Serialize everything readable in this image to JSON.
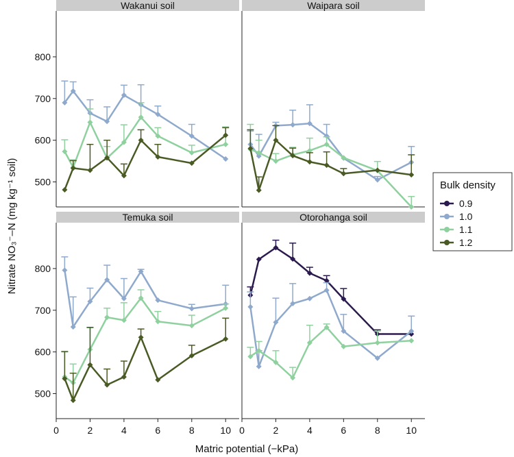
{
  "chart_data": {
    "type": "line",
    "xlabel": "Matric potential (−kPa)",
    "ylabel": "Nitrate NO₃⁻–N (mg kg⁻¹ soil)",
    "xlim": [
      0,
      10.8
    ],
    "ylim": [
      440,
      910
    ],
    "x_ticks": [
      0,
      2,
      4,
      6,
      8,
      10
    ],
    "y_ticks": [
      500,
      600,
      700,
      800
    ],
    "grid": false,
    "legend": {
      "title": "Bulk density",
      "position": "right",
      "entries": [
        "0.9",
        "1.0",
        "1.1",
        "1.2"
      ]
    },
    "colors": {
      "0.9": "#2a1a4d",
      "1.0": "#8ea9cc",
      "1.1": "#8fd19e",
      "1.2": "#4a5a24",
      "strip": "#cccccc"
    },
    "x": [
      0.5,
      1,
      2,
      3,
      4,
      5,
      6,
      8,
      10
    ],
    "panels": [
      {
        "title": "Wakanui soil",
        "series": [
          {
            "name": "1.0",
            "values": [
              690,
              718,
              665,
              645,
              708,
              685,
              662,
              610,
              555
            ],
            "err": [
              52,
              22,
              32,
              35,
              24,
              48,
              20,
              28,
              0
            ]
          },
          {
            "name": "1.1",
            "values": [
              573,
              535,
              643,
              557,
              595,
              655,
              610,
              570,
              590
            ],
            "err": [
              28,
              18,
              32,
              28,
              42,
              35,
              20,
              18,
              42
            ]
          },
          {
            "name": "1.2",
            "values": [
              481,
              533,
              528,
              558,
              515,
              600,
              560,
              545,
              612
            ],
            "err": [
              0,
              18,
              62,
              42,
              28,
              25,
              30,
              0,
              18
            ]
          }
        ]
      },
      {
        "title": "Waipara soil",
        "series": [
          {
            "name": "1.0",
            "values": [
              590,
              562,
              635,
              637,
              640,
              610,
              557,
              505,
              547
            ],
            "err": [
              32,
              52,
              8,
              35,
              45,
              28,
              0,
              8,
              38
            ]
          },
          {
            "name": "1.1",
            "values": [
              578,
              570,
              550,
              565,
              575,
              590,
              558,
              527,
              440
            ],
            "err": [
              60,
              30,
              18,
              18,
              30,
              18,
              0,
              22,
              25
            ]
          },
          {
            "name": "1.2",
            "values": [
              580,
              480,
              600,
              563,
              548,
              540,
              520,
              528,
              517
            ],
            "err": [
              45,
              32,
              35,
              18,
              22,
              32,
              12,
              0,
              48
            ]
          }
        ]
      },
      {
        "title": "Temuka soil",
        "series": [
          {
            "name": "1.0",
            "values": [
              796,
              660,
              721,
              773,
              728,
              793,
              724,
              704,
              715
            ],
            "err": [
              32,
              72,
              32,
              35,
              48,
              5,
              0,
              10,
              45
            ]
          },
          {
            "name": "1.1",
            "values": [
              540,
              526,
              606,
              683,
              676,
              729,
              673,
              663,
              705
            ],
            "err": [
              60,
              45,
              52,
              22,
              42,
              20,
              24,
              25,
              10
            ]
          },
          {
            "name": "1.2",
            "values": [
              536,
              484,
              569,
              521,
              540,
              635,
              533,
              591,
              631
            ],
            "err": [
              65,
              65,
              90,
              38,
              38,
              20,
              0,
              25,
              50
            ]
          }
        ]
      },
      {
        "title": "Otorohanga soil",
        "series": [
          {
            "name": "0.9",
            "values": [
              736,
              822,
              850,
              823,
              789,
              771,
              727,
              643,
              643
            ],
            "err": [
              20,
              0,
              18,
              38,
              14,
              12,
              25,
              10,
              0
            ]
          },
          {
            "name": "1.0",
            "values": [
              708,
              565,
              671,
              716,
              728,
              748,
              650,
              585,
              650
            ],
            "err": [
              36,
              38,
              58,
              48,
              0,
              18,
              40,
              0,
              36
            ]
          },
          {
            "name": "1.1",
            "values": [
              589,
              603,
              575,
              538,
              622,
              659,
              613,
              622,
              627
            ],
            "err": [
              22,
              22,
              28,
              25,
              42,
              8,
              0,
              28,
              0
            ]
          }
        ]
      }
    ]
  }
}
